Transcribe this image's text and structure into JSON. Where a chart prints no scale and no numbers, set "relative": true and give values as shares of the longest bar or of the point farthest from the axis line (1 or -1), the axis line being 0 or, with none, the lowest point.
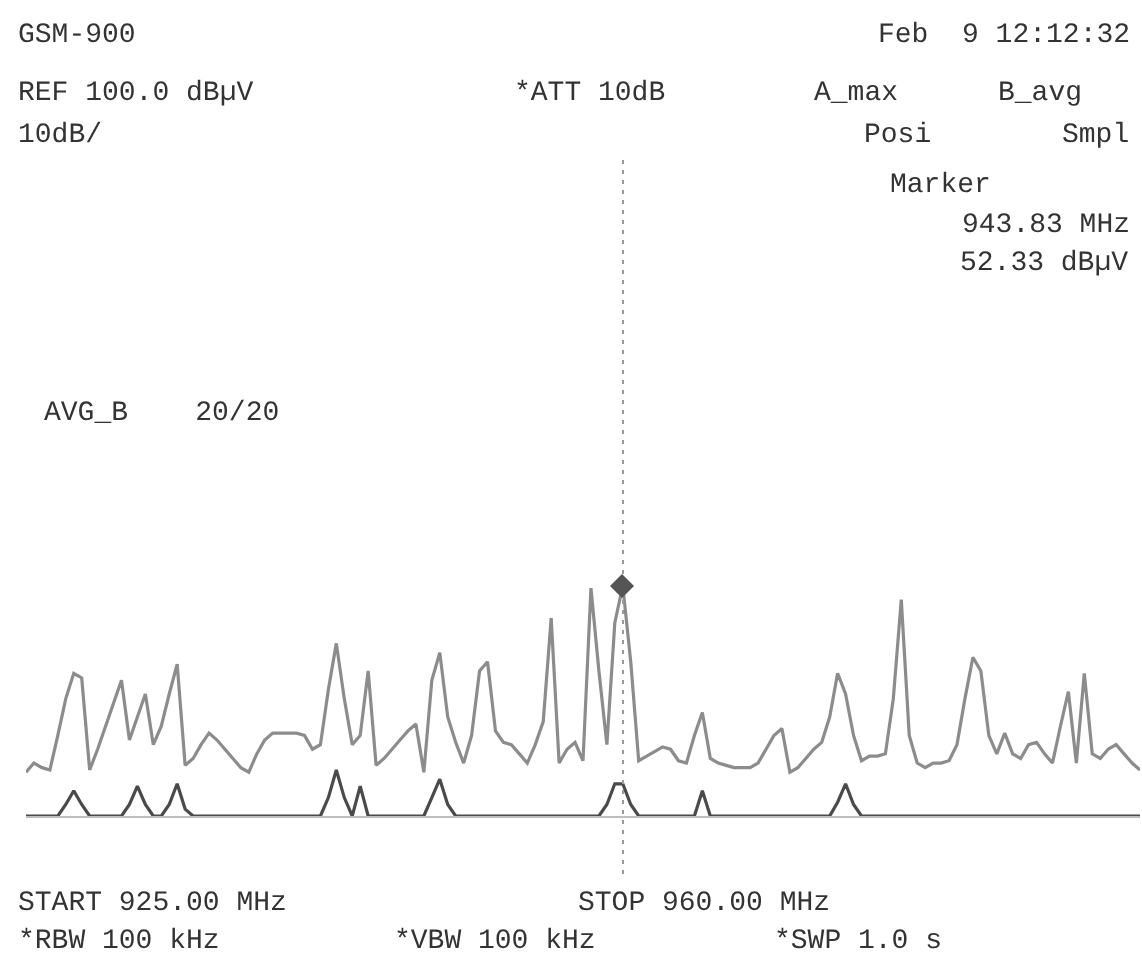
{
  "chart_data": {
    "type": "line",
    "relative": true,
    "marker": "none",
    "annotations": [
      "GSM-900",
      "Feb  9 12:12:32",
      "REF 100.0 dBµV",
      "*ATT 10dB",
      "A_max",
      "B_avg",
      "10dB/",
      "Posi",
      "Smpl",
      "Marker",
      "943.83 MHz",
      "52.33 dBµV",
      "AVG_B    20/20",
      "START 925.00 MHz",
      "STOP 960.00 MHz",
      "*RBW 100 kHz",
      "*VBW 100 kHz",
      "*SWP 1.0 s"
    ],
    "categories": [
      null,
      null,
      null,
      null,
      null,
      null,
      null,
      null,
      null,
      null,
      null,
      null,
      null,
      null,
      null,
      null,
      null,
      null,
      null,
      null,
      null,
      null,
      null,
      null,
      null,
      null,
      null,
      null,
      null,
      null,
      null,
      null,
      null,
      null,
      null,
      null,
      null,
      null,
      null,
      null,
      null,
      null,
      null,
      null,
      null,
      null,
      null,
      null,
      null,
      null,
      null,
      null,
      null,
      null,
      null,
      null,
      null,
      null,
      null,
      null,
      null,
      null,
      null,
      null,
      null,
      null,
      null,
      null,
      null,
      null,
      null,
      null,
      null,
      null,
      null,
      null,
      null,
      null,
      null,
      null,
      null,
      null,
      null,
      null,
      null,
      null,
      null,
      null,
      null,
      null,
      null,
      null,
      null,
      null,
      null,
      null,
      null,
      null,
      null,
      null,
      null,
      null,
      null,
      null,
      null,
      null,
      null,
      null,
      null,
      null,
      null,
      null,
      null,
      null,
      null,
      null,
      null,
      null,
      null,
      null,
      null,
      null,
      null,
      null,
      null,
      null,
      null,
      null,
      null,
      null,
      null,
      null,
      null,
      null,
      null,
      null,
      null,
      null,
      null,
      null,
      null
    ],
    "series": [
      {
        "color": "#8c8c8c",
        "values": [
          0.19,
          0.23,
          0.21,
          0.2,
          0.35,
          0.51,
          0.62,
          0.6,
          0.2,
          0.29,
          0.39,
          0.49,
          0.59,
          0.33,
          0.43,
          0.53,
          0.31,
          0.39,
          0.53,
          0.66,
          0.22,
          0.25,
          0.31,
          0.36,
          0.33,
          0.29,
          0.25,
          0.21,
          0.19,
          0.27,
          0.33,
          0.36,
          0.36,
          0.36,
          0.36,
          0.35,
          0.29,
          0.31,
          0.55,
          0.75,
          0.51,
          0.31,
          0.35,
          0.63,
          0.22,
          0.25,
          0.29,
          0.33,
          0.37,
          0.4,
          0.19,
          0.59,
          0.71,
          0.43,
          0.32,
          0.23,
          0.35,
          0.63,
          0.67,
          0.37,
          0.32,
          0.31,
          0.27,
          0.23,
          0.31,
          0.41,
          0.86,
          0.23,
          0.29,
          0.32,
          0.24,
          0.99,
          0.63,
          0.31,
          0.84,
          1,
          0.67,
          0.24,
          0.26,
          0.28,
          0.3,
          0.29,
          0.24,
          0.23,
          0.35,
          0.45,
          0.25,
          0.23,
          0.22,
          0.21,
          0.21,
          0.21,
          0.23,
          0.29,
          0.35,
          0.38,
          0.19,
          0.21,
          0.25,
          0.29,
          0.32,
          0.43,
          0.62,
          0.53,
          0.35,
          0.24,
          0.26,
          0.26,
          0.27,
          0.51,
          0.94,
          0.35,
          0.23,
          0.21,
          0.23,
          0.23,
          0.24,
          0.31,
          0.51,
          0.69,
          0.63,
          0.35,
          0.27,
          0.36,
          0.27,
          0.25,
          0.31,
          0.32,
          0.27,
          0.23,
          0.39,
          0.54,
          0.23,
          0.62,
          0.27,
          0.25,
          0.29,
          0.31,
          0.27,
          0.23,
          0.2
        ]
      },
      {
        "color": "#4a4a4a",
        "values": [
          0,
          0,
          0,
          0,
          0,
          0.05,
          0.11,
          0.05,
          0,
          0,
          0,
          0,
          0,
          0.05,
          0.13,
          0.05,
          0,
          0,
          0.05,
          0.14,
          0.03,
          0,
          0,
          0,
          0,
          0,
          0,
          0,
          0,
          0,
          0,
          0,
          0,
          0,
          0,
          0,
          0,
          0,
          0.08,
          0.2,
          0.08,
          0,
          0.13,
          0,
          0,
          0,
          0,
          0,
          0,
          0,
          0,
          0.08,
          0.16,
          0.05,
          0,
          0,
          0,
          0,
          0,
          0,
          0,
          0,
          0,
          0,
          0,
          0,
          0,
          0,
          0,
          0,
          0,
          0,
          0,
          0.05,
          0.14,
          0.14,
          0.05,
          0,
          0,
          0,
          0,
          0,
          0,
          0,
          0,
          0.11,
          0,
          0,
          0,
          0,
          0,
          0,
          0,
          0,
          0,
          0,
          0,
          0,
          0,
          0,
          0,
          0,
          0.06,
          0.14,
          0.05,
          0,
          0,
          0,
          0,
          0,
          0,
          0,
          0,
          0,
          0,
          0,
          0,
          0,
          0,
          0,
          0,
          0,
          0,
          0,
          0,
          0,
          0,
          0,
          0,
          0,
          0,
          0,
          0,
          0,
          0,
          0,
          0,
          0,
          0,
          0,
          0
        ]
      }
    ]
  }
}
